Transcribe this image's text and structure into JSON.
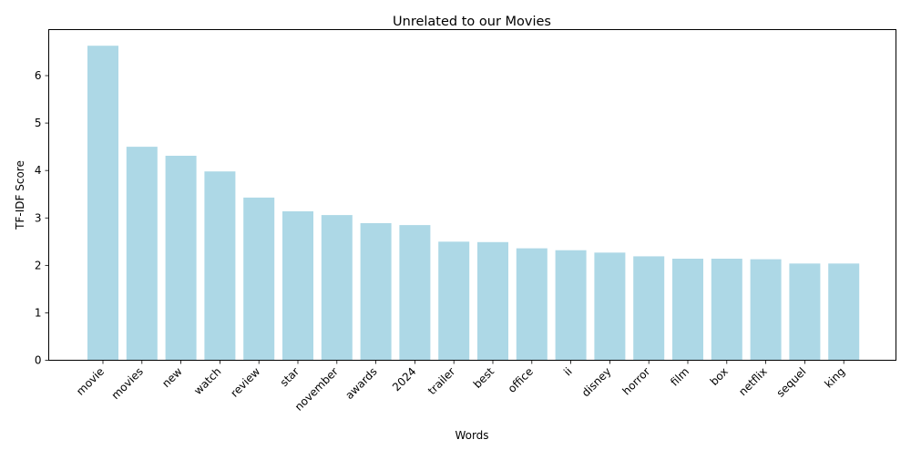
{
  "chart_data": {
    "type": "bar",
    "title": "Unrelated to our Movies",
    "xlabel": "Words",
    "ylabel": "TF-IDF Score",
    "categories": [
      "movie",
      "movies",
      "new",
      "watch",
      "review",
      "star",
      "november",
      "awards",
      "2024",
      "trailer",
      "best",
      "office",
      "ii",
      "disney",
      "horror",
      "film",
      "box",
      "netflix",
      "sequel",
      "king"
    ],
    "values": [
      6.63,
      4.5,
      4.31,
      3.98,
      3.43,
      3.14,
      3.06,
      2.89,
      2.85,
      2.5,
      2.49,
      2.36,
      2.32,
      2.27,
      2.19,
      2.14,
      2.14,
      2.13,
      2.04,
      2.04
    ],
    "yticks": [
      0,
      1,
      2,
      3,
      4,
      5,
      6
    ],
    "ylim": [
      0,
      6.97
    ],
    "bar_color": "#add8e6",
    "grid": false,
    "legend": "none"
  }
}
